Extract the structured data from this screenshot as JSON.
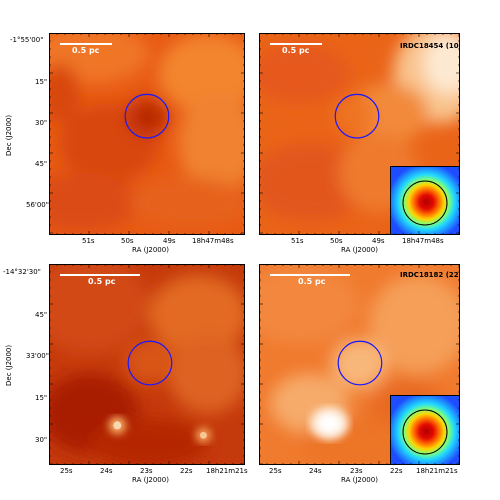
{
  "scale_bar_label": "0.5 pc",
  "sources": {
    "top": "IRDC18454 (10",
    "bottom": "IRDC18182 (22"
  },
  "axis_titles": {
    "x": "RA (J2000)",
    "y": "Dec (J2000)"
  },
  "top_row": {
    "x_ticks": [
      "51s",
      "50s",
      "49s",
      "18h47m48s"
    ],
    "y_ticks": [
      "-1°55'00\"",
      "15\"",
      "30\"",
      "45\"",
      "56'00\""
    ]
  },
  "bottom_row": {
    "x_ticks": [
      "25s",
      "24s",
      "23s",
      "22s",
      "18h21m21s"
    ],
    "y_ticks": [
      "-14°32'30\"",
      "45\"",
      "33'00\"",
      "15\"",
      "30\""
    ]
  },
  "colors": {
    "aperture_circle": "#1a1aff",
    "scale_bar": "#ffffff",
    "map_dark": "#b31d00",
    "map_mid": "#ef6a1a",
    "map_light": "#fbe3c6"
  }
}
